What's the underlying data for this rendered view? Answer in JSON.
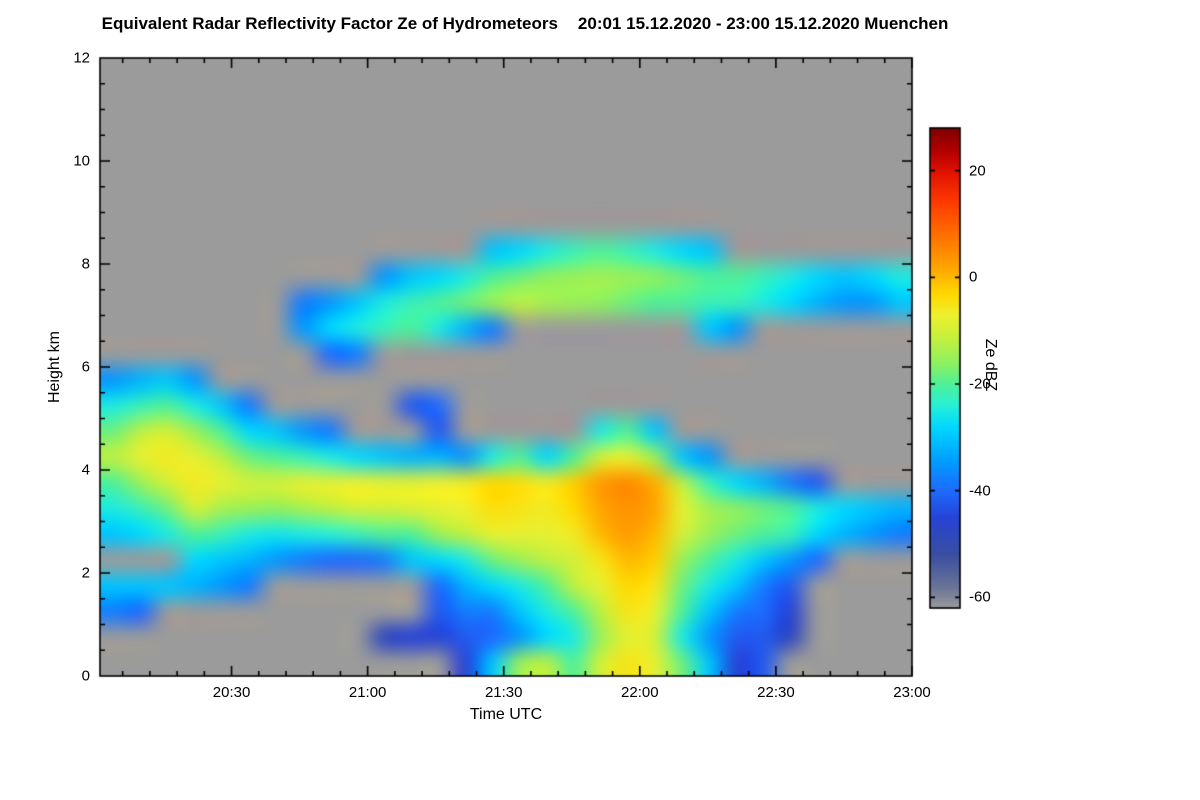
{
  "chart_data": {
    "type": "heatmap",
    "title": "Equivalent Radar Reflectivity Factor Ze of Hydrometeors",
    "subtitle": "20:01 15.12.2020 - 23:00 15.12.2020 Muenchen",
    "xlabel": "Time UTC",
    "ylabel": "Height km",
    "x_range_hours": [
      20.0167,
      23.0
    ],
    "y_range_km": [
      0,
      12
    ],
    "x_ticks": [
      {
        "hour": 20.5,
        "label": "20:30"
      },
      {
        "hour": 21.0,
        "label": "21:00"
      },
      {
        "hour": 21.5,
        "label": "21:30"
      },
      {
        "hour": 22.0,
        "label": "22:00"
      },
      {
        "hour": 22.5,
        "label": "22:30"
      },
      {
        "hour": 23.0,
        "label": "23:00"
      }
    ],
    "y_ticks": [
      0,
      2,
      4,
      6,
      8,
      10,
      12
    ],
    "background_color": "#9b9b9b",
    "colorbar": {
      "label": "Ze dBZ",
      "min": -62,
      "max": 28,
      "ticks": [
        20,
        0,
        -20,
        -40,
        -60
      ]
    },
    "colormap": [
      [
        -62,
        "#9b9b9b"
      ],
      [
        -58,
        "#6a7496"
      ],
      [
        -52,
        "#3a4fa0"
      ],
      [
        -45,
        "#2743d6"
      ],
      [
        -40,
        "#1e6aff"
      ],
      [
        -34,
        "#00a0ff"
      ],
      [
        -28,
        "#00d8ff"
      ],
      [
        -24,
        "#26f0d8"
      ],
      [
        -20,
        "#4ef09a"
      ],
      [
        -16,
        "#8ef060"
      ],
      [
        -11,
        "#c8f03c"
      ],
      [
        -7,
        "#eef02e"
      ],
      [
        -3,
        "#ffd800"
      ],
      [
        2,
        "#ffa400"
      ],
      [
        8,
        "#ff7000"
      ],
      [
        14,
        "#ff3c00"
      ],
      [
        20,
        "#e01000"
      ],
      [
        24,
        "#b00000"
      ],
      [
        28,
        "#800000"
      ]
    ],
    "grid": {
      "note": "Approximate Ze (dBZ) read from the plot; null = no echo (background). 30 time columns spanning 20:01-23:00, 24 height rows of 0.5 km listed top (11.5-12 km) to bottom (0-0.5 km).",
      "cols": 30,
      "rows": 24,
      "values_dbz": [
        [
          null,
          null,
          null,
          null,
          null,
          null,
          null,
          null,
          null,
          null,
          null,
          null,
          null,
          null,
          null,
          null,
          null,
          null,
          null,
          null,
          null,
          null,
          null,
          null,
          null,
          null,
          null,
          null,
          null,
          null
        ],
        [
          null,
          null,
          null,
          null,
          null,
          null,
          null,
          null,
          null,
          null,
          null,
          null,
          null,
          null,
          null,
          null,
          null,
          null,
          null,
          null,
          null,
          null,
          null,
          null,
          null,
          null,
          null,
          null,
          null,
          null
        ],
        [
          null,
          null,
          null,
          null,
          null,
          null,
          null,
          null,
          null,
          null,
          null,
          null,
          null,
          null,
          null,
          null,
          null,
          null,
          null,
          null,
          null,
          null,
          null,
          null,
          null,
          null,
          null,
          null,
          null,
          null
        ],
        [
          null,
          null,
          null,
          null,
          null,
          null,
          null,
          null,
          null,
          null,
          null,
          null,
          null,
          null,
          null,
          null,
          null,
          null,
          null,
          null,
          null,
          null,
          null,
          null,
          null,
          null,
          null,
          null,
          null,
          null
        ],
        [
          null,
          null,
          null,
          null,
          null,
          null,
          null,
          null,
          null,
          null,
          null,
          null,
          null,
          null,
          null,
          null,
          null,
          null,
          null,
          null,
          null,
          null,
          null,
          null,
          null,
          null,
          null,
          null,
          null,
          null
        ],
        [
          null,
          null,
          null,
          null,
          null,
          null,
          null,
          null,
          null,
          null,
          null,
          null,
          null,
          null,
          null,
          null,
          null,
          null,
          null,
          null,
          null,
          null,
          null,
          null,
          null,
          null,
          null,
          null,
          null,
          null
        ],
        [
          null,
          null,
          null,
          null,
          null,
          null,
          null,
          null,
          null,
          null,
          null,
          null,
          null,
          null,
          null,
          null,
          null,
          null,
          null,
          null,
          null,
          null,
          null,
          null,
          null,
          null,
          null,
          null,
          null,
          null
        ],
        [
          null,
          null,
          null,
          null,
          null,
          null,
          null,
          null,
          null,
          null,
          null,
          null,
          null,
          null,
          -30,
          -28,
          -25,
          -22,
          -20,
          -22,
          -25,
          -28,
          -30,
          null,
          null,
          null,
          null,
          null,
          null,
          null
        ],
        [
          null,
          null,
          null,
          null,
          null,
          null,
          null,
          null,
          null,
          null,
          -35,
          -30,
          -28,
          -25,
          -20,
          -18,
          -16,
          -15,
          -14,
          -15,
          -16,
          -18,
          -20,
          -20,
          -22,
          -25,
          -28,
          -30,
          -28,
          -25
        ],
        [
          null,
          null,
          null,
          null,
          null,
          null,
          null,
          -38,
          -35,
          -30,
          -25,
          -22,
          -20,
          -18,
          -15,
          -12,
          -14,
          -15,
          -16,
          -18,
          -20,
          -20,
          -22,
          -22,
          -25,
          -28,
          -32,
          -35,
          -35,
          -30
        ],
        [
          null,
          null,
          null,
          null,
          null,
          null,
          null,
          -35,
          -28,
          -25,
          -22,
          -20,
          -25,
          -32,
          -38,
          null,
          null,
          null,
          null,
          null,
          null,
          null,
          -30,
          -35,
          null,
          null,
          null,
          null,
          null,
          null
        ],
        [
          null,
          null,
          null,
          null,
          null,
          null,
          null,
          null,
          -40,
          -38,
          null,
          null,
          null,
          null,
          null,
          null,
          null,
          null,
          null,
          null,
          null,
          null,
          null,
          null,
          null,
          null,
          null,
          null,
          null,
          null
        ],
        [
          -35,
          -32,
          -30,
          -35,
          null,
          null,
          null,
          null,
          null,
          null,
          null,
          null,
          null,
          null,
          null,
          null,
          null,
          null,
          null,
          null,
          null,
          null,
          null,
          null,
          null,
          null,
          null,
          null,
          null,
          null
        ],
        [
          -25,
          -22,
          -20,
          -25,
          -30,
          -38,
          null,
          null,
          null,
          null,
          null,
          -42,
          -40,
          null,
          null,
          null,
          null,
          null,
          null,
          null,
          null,
          null,
          null,
          null,
          null,
          null,
          null,
          null,
          null,
          null
        ],
        [
          -18,
          -12,
          -10,
          -15,
          -20,
          -28,
          -30,
          -35,
          -38,
          null,
          null,
          null,
          -42,
          null,
          null,
          null,
          null,
          null,
          -25,
          -20,
          -30,
          null,
          null,
          null,
          null,
          null,
          null,
          null,
          null,
          null
        ],
        [
          -12,
          -8,
          -6,
          -8,
          -12,
          -18,
          -20,
          -22,
          -25,
          -28,
          -30,
          -32,
          -32,
          -35,
          -25,
          -20,
          -28,
          -20,
          -10,
          -8,
          -15,
          -30,
          -35,
          null,
          null,
          null,
          null,
          null,
          null,
          null
        ],
        [
          -20,
          -15,
          -10,
          -6,
          -8,
          -10,
          -10,
          -8,
          -8,
          -7,
          -8,
          -8,
          -7,
          -6,
          -3,
          -4,
          -6,
          -2,
          3,
          5,
          1,
          -12,
          -22,
          -28,
          -32,
          -38,
          -42,
          null,
          null,
          null
        ],
        [
          -25,
          -22,
          -18,
          -10,
          -14,
          -15,
          -16,
          -14,
          -12,
          -10,
          -10,
          -9,
          -8,
          -7,
          -4,
          -5,
          -6,
          -3,
          2,
          4,
          2,
          -8,
          -14,
          -16,
          -18,
          -20,
          -25,
          -28,
          -30,
          -32
        ],
        [
          -30,
          -28,
          -25,
          -20,
          -22,
          -25,
          -26,
          -25,
          -24,
          -22,
          -20,
          -20,
          -15,
          -12,
          -8,
          -8,
          -8,
          -6,
          0,
          3,
          0,
          -10,
          -15,
          -18,
          -20,
          -22,
          -28,
          -32,
          -35,
          -38
        ],
        [
          null,
          null,
          null,
          -28,
          -30,
          -32,
          -35,
          -38,
          -40,
          -40,
          -38,
          -30,
          -28,
          -25,
          -18,
          -15,
          -12,
          -10,
          -5,
          0,
          -2,
          -15,
          -20,
          -25,
          -30,
          -35,
          -40,
          null,
          null,
          null
        ],
        [
          -30,
          -30,
          -30,
          -32,
          -35,
          -38,
          null,
          null,
          null,
          null,
          null,
          null,
          -40,
          -32,
          -28,
          -25,
          -20,
          -12,
          -8,
          -3,
          -5,
          -18,
          -25,
          -30,
          -38,
          -42,
          null,
          null,
          null,
          null
        ],
        [
          -38,
          -40,
          null,
          null,
          null,
          null,
          null,
          null,
          null,
          null,
          null,
          null,
          -42,
          -38,
          -38,
          -30,
          -25,
          -20,
          -12,
          -5,
          -8,
          -20,
          -30,
          -38,
          -40,
          -45,
          null,
          null,
          null,
          null
        ],
        [
          null,
          null,
          null,
          null,
          null,
          null,
          null,
          null,
          null,
          null,
          -48,
          -45,
          -45,
          -42,
          -40,
          -35,
          -28,
          -25,
          -15,
          -8,
          -10,
          -25,
          -35,
          -42,
          -42,
          -48,
          null,
          null,
          null,
          null
        ],
        [
          null,
          null,
          null,
          null,
          null,
          null,
          null,
          null,
          null,
          null,
          null,
          null,
          null,
          -45,
          -30,
          -15,
          -12,
          -20,
          -10,
          -5,
          -8,
          -18,
          -30,
          -45,
          -42,
          null,
          null,
          null,
          null,
          null
        ]
      ]
    }
  }
}
